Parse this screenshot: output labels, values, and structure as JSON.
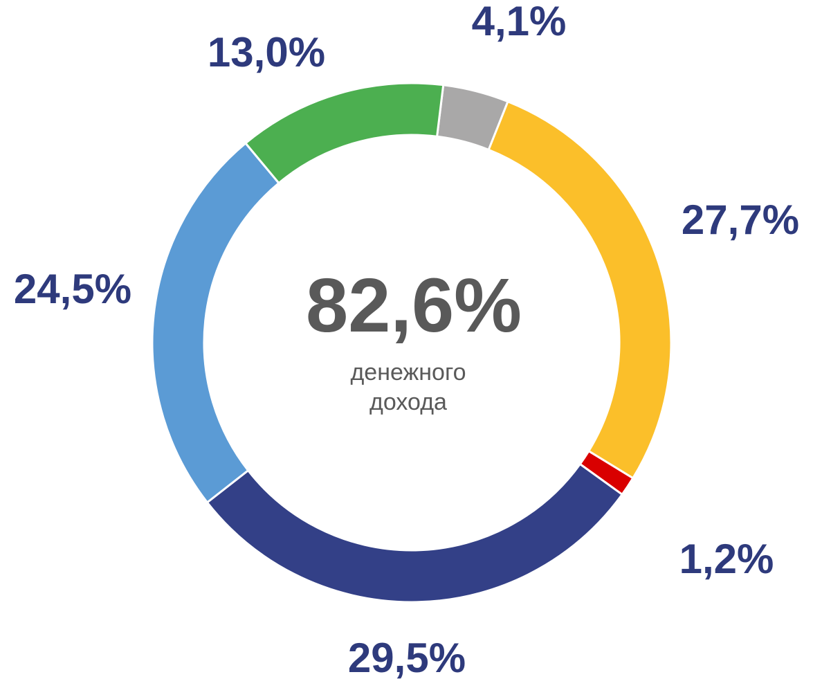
{
  "chart_data": {
    "type": "donut",
    "values": [
      4.1,
      27.7,
      1.2,
      29.5,
      24.5,
      13.0
    ],
    "value_labels": [
      "4,1%",
      "27,7%",
      "1,2%",
      "29,5%",
      "24,5%",
      "13,0%"
    ],
    "colors": [
      "#a9a8a8",
      "#fbbf2a",
      "#d90000",
      "#334087",
      "#5b9bd5",
      "#4caf50"
    ],
    "center_value": "82,6%",
    "center_label": [
      "денежного",
      "дохода"
    ]
  }
}
